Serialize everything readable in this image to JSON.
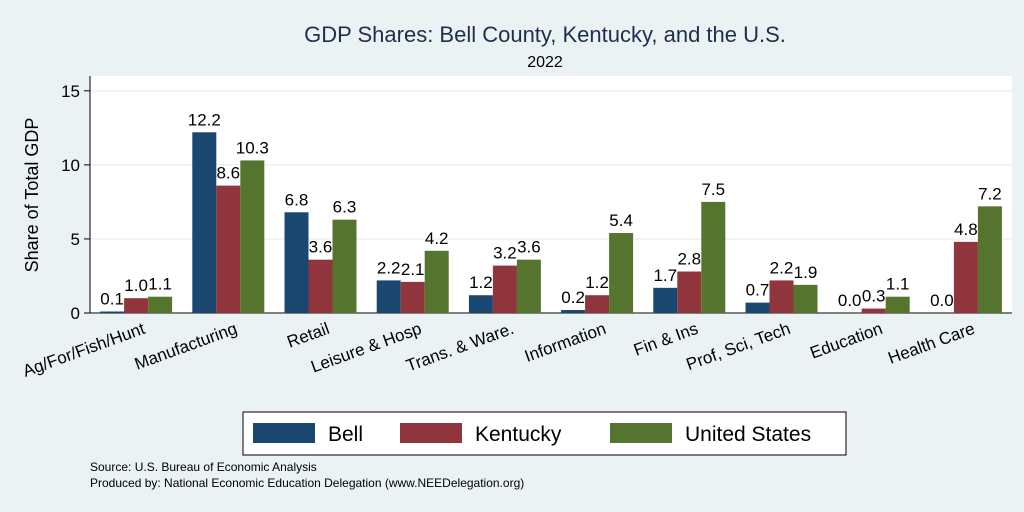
{
  "chart_data": {
    "type": "bar",
    "title": "GDP Shares: Bell County, Kentucky, and the U.S.",
    "subtitle": "2022",
    "xlabel": "",
    "ylabel": "Share of Total GDP",
    "ylim": [
      0,
      16
    ],
    "yticks": [
      0,
      5,
      10,
      15
    ],
    "grid": true,
    "legend_position": "bottom",
    "categories": [
      "Ag/For/Fish/Hunt",
      "Manufacturing",
      "Retail",
      "Leisure & Hosp",
      "Trans. & Ware.",
      "Information",
      "Fin & Ins",
      "Prof, Sci, Tech",
      "Education",
      "Health Care"
    ],
    "series": [
      {
        "name": "Bell",
        "color": "#1a476f",
        "values": [
          0.1,
          12.2,
          6.8,
          2.2,
          1.2,
          0.2,
          1.7,
          0.7,
          0.0,
          0.0
        ]
      },
      {
        "name": "Kentucky",
        "color": "#90353b",
        "values": [
          1.0,
          8.6,
          3.6,
          2.1,
          3.2,
          1.2,
          2.8,
          2.2,
          0.3,
          4.8
        ]
      },
      {
        "name": "United States",
        "color": "#55752f",
        "values": [
          1.1,
          10.3,
          6.3,
          4.2,
          3.6,
          5.4,
          7.5,
          1.9,
          1.1,
          7.2
        ]
      }
    ]
  },
  "notes": {
    "source": "Source: U.S. Bureau of Economic Analysis",
    "produced_by": "Produced by: National Economic Education Delegation (www.NEEDelegation.org)"
  }
}
